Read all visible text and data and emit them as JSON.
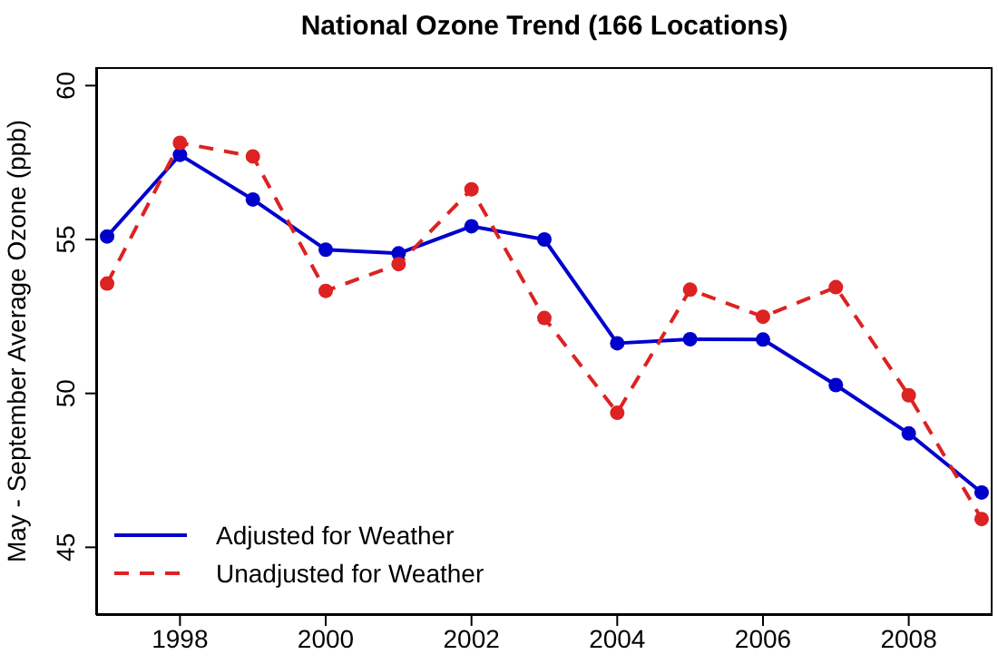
{
  "chart_data": {
    "type": "line",
    "title": "National Ozone Trend (166 Locations)",
    "ylabel": "May - September Average Ozone (ppb)",
    "x": [
      1997,
      1998,
      1999,
      2000,
      2001,
      2002,
      2003,
      2004,
      2005,
      2006,
      2007,
      2008,
      2009
    ],
    "series": [
      {
        "name": "Adjusted for Weather",
        "color": "#0000cc",
        "line_style": "solid",
        "values": [
          55.1,
          57.75,
          56.3,
          54.67,
          54.55,
          55.43,
          55.0,
          51.63,
          51.76,
          51.75,
          50.27,
          48.7,
          46.78
        ]
      },
      {
        "name": "Unadjusted for Weather",
        "color": "#dd2222",
        "line_style": "dashed",
        "values": [
          53.57,
          58.14,
          57.7,
          53.33,
          54.2,
          56.63,
          52.45,
          49.37,
          53.37,
          52.49,
          53.45,
          49.94,
          45.92
        ]
      }
    ],
    "xlim": [
      1996.85,
      2009.15
    ],
    "xticks": [
      1998,
      2000,
      2002,
      2004,
      2006,
      2008
    ],
    "ylim": [
      42.8,
      60.6
    ],
    "yticks": [
      45,
      50,
      55,
      60
    ],
    "grid": false,
    "legend": "bottom left",
    "marker": "circle"
  }
}
